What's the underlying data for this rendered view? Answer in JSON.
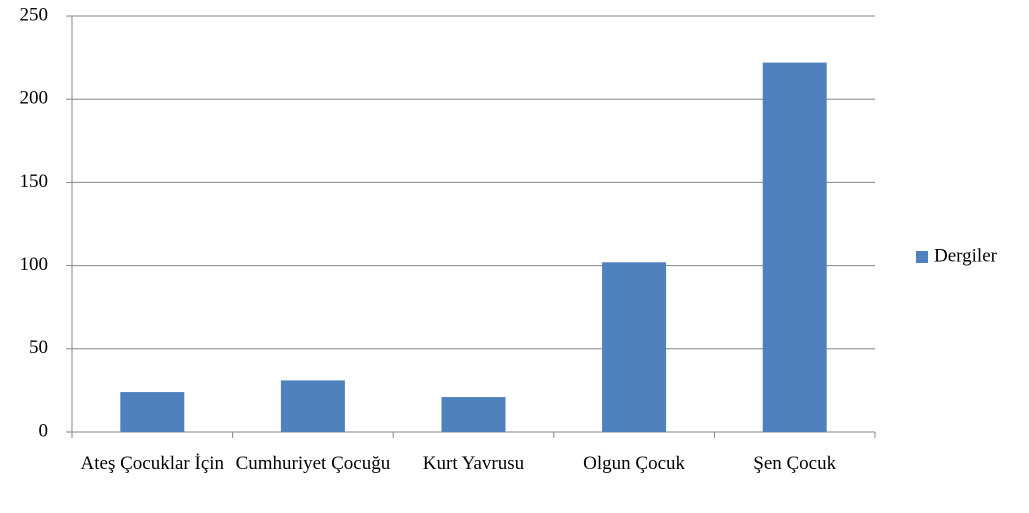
{
  "chart_data": {
    "type": "bar",
    "categories": [
      "Ateş Çocuklar İçin",
      "Cumhuriyet Çocuğu",
      "Kurt Yavrusu",
      "Olgun Çocuk",
      "Şen Çocuk"
    ],
    "series": [
      {
        "name": "Dergiler",
        "color": "#4f81bd",
        "values": [
          24,
          31,
          21,
          102,
          222
        ]
      }
    ],
    "ylim": [
      0,
      250
    ],
    "yticks": [
      0,
      50,
      100,
      150,
      200,
      250
    ],
    "grid": true,
    "legend": "right"
  }
}
